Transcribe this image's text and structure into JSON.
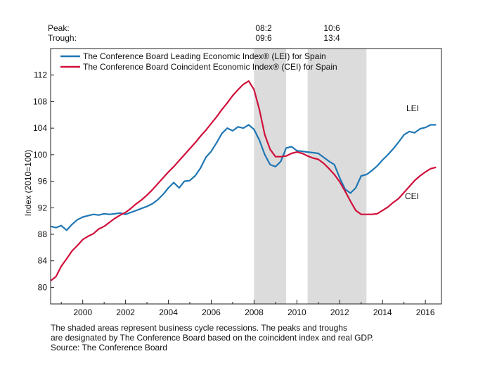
{
  "chart_data": {
    "type": "line",
    "peak_label": "Peak:",
    "trough_label": "Trough:",
    "recessions": [
      {
        "peak": "08:2",
        "trough": "09:6",
        "start": 2008.0,
        "end": 2009.5
      },
      {
        "peak": "10:6",
        "trough": "13:4",
        "start": 2010.5,
        "end": 2013.25
      }
    ],
    "ylabel": "Index (2010=100)",
    "ylim": [
      77.5,
      116.0
    ],
    "xlim": [
      1998.5,
      2016.75
    ],
    "y_ticks": [
      "80",
      "84",
      "88",
      "92",
      "96",
      "100",
      "104",
      "108",
      "112"
    ],
    "x_ticks": [
      "2000",
      "2002",
      "2004",
      "2006",
      "2008",
      "2010",
      "2012",
      "2014",
      "2016"
    ],
    "grid": false,
    "legend_position": "top-left",
    "series": [
      {
        "name": "The Conference Board Leading Economic Index® (LEI) for Spain",
        "end_label": "LEI",
        "color": "#1f77b4",
        "x": [
          1998.5,
          1998.75,
          1999.0,
          1999.25,
          1999.5,
          1999.75,
          2000.0,
          2000.25,
          2000.5,
          2000.75,
          2001.0,
          2001.25,
          2001.5,
          2001.75,
          2002.0,
          2002.25,
          2002.5,
          2002.75,
          2003.0,
          2003.25,
          2003.5,
          2003.75,
          2004.0,
          2004.25,
          2004.5,
          2004.75,
          2005.0,
          2005.25,
          2005.5,
          2005.75,
          2006.0,
          2006.25,
          2006.5,
          2006.75,
          2007.0,
          2007.25,
          2007.5,
          2007.75,
          2008.0,
          2008.25,
          2008.5,
          2008.75,
          2009.0,
          2009.25,
          2009.5,
          2009.75,
          2010.0,
          2010.25,
          2010.5,
          2010.75,
          2011.0,
          2011.25,
          2011.5,
          2011.75,
          2012.0,
          2012.25,
          2012.5,
          2012.75,
          2013.0,
          2013.25,
          2013.5,
          2013.75,
          2014.0,
          2014.25,
          2014.5,
          2014.75,
          2015.0,
          2015.25,
          2015.5,
          2015.75,
          2016.0,
          2016.25,
          2016.5
        ],
        "values": [
          89.2,
          89.0,
          89.3,
          88.6,
          89.5,
          90.2,
          90.6,
          90.8,
          91.0,
          90.9,
          91.1,
          91.0,
          91.1,
          91.2,
          91.0,
          91.3,
          91.6,
          91.9,
          92.2,
          92.6,
          93.2,
          94.0,
          95.0,
          95.8,
          95.0,
          96.0,
          96.1,
          96.8,
          98.0,
          99.6,
          100.5,
          101.8,
          103.2,
          104.0,
          103.6,
          104.2,
          104.0,
          104.5,
          103.8,
          102.2,
          100.0,
          98.5,
          98.2,
          99.0,
          101.0,
          101.2,
          100.6,
          100.5,
          100.4,
          100.3,
          100.2,
          99.6,
          99.0,
          98.5,
          96.5,
          94.8,
          94.2,
          95.0,
          96.8,
          97.0,
          97.6,
          98.3,
          99.2,
          100.0,
          100.9,
          101.9,
          103.0,
          103.5,
          103.3,
          103.9,
          104.1,
          104.5,
          104.5
        ]
      },
      {
        "name": "The Conference Board Coincident Economic Index® (CEI) for Spain",
        "end_label": "CEI",
        "color": "#d0103a",
        "x": [
          1998.5,
          1998.75,
          1999.0,
          1999.25,
          1999.5,
          1999.75,
          2000.0,
          2000.25,
          2000.5,
          2000.75,
          2001.0,
          2001.25,
          2001.5,
          2001.75,
          2002.0,
          2002.25,
          2002.5,
          2002.75,
          2003.0,
          2003.25,
          2003.5,
          2003.75,
          2004.0,
          2004.25,
          2004.5,
          2004.75,
          2005.0,
          2005.25,
          2005.5,
          2005.75,
          2006.0,
          2006.25,
          2006.5,
          2006.75,
          2007.0,
          2007.25,
          2007.5,
          2007.75,
          2008.0,
          2008.25,
          2008.5,
          2008.75,
          2009.0,
          2009.25,
          2009.5,
          2009.75,
          2010.0,
          2010.25,
          2010.5,
          2010.75,
          2011.0,
          2011.25,
          2011.5,
          2011.75,
          2012.0,
          2012.25,
          2012.5,
          2012.75,
          2013.0,
          2013.25,
          2013.5,
          2013.75,
          2014.0,
          2014.25,
          2014.5,
          2014.75,
          2015.0,
          2015.25,
          2015.5,
          2015.75,
          2016.0,
          2016.25,
          2016.5
        ],
        "values": [
          81.0,
          81.6,
          83.2,
          84.3,
          85.5,
          86.3,
          87.2,
          87.7,
          88.1,
          88.8,
          89.2,
          89.8,
          90.4,
          90.9,
          91.3,
          91.9,
          92.6,
          93.2,
          93.9,
          94.7,
          95.6,
          96.5,
          97.4,
          98.2,
          99.1,
          100.0,
          100.9,
          101.8,
          102.8,
          103.7,
          104.7,
          105.7,
          106.8,
          107.8,
          108.9,
          109.8,
          110.6,
          111.1,
          109.8,
          106.8,
          103.0,
          100.8,
          99.7,
          99.7,
          99.8,
          100.2,
          100.4,
          100.2,
          99.8,
          99.5,
          99.3,
          98.7,
          97.9,
          97.0,
          95.9,
          94.5,
          93.0,
          91.6,
          91.0,
          91.0,
          91.0,
          91.1,
          91.6,
          92.1,
          92.8,
          93.4,
          94.3,
          95.2,
          96.1,
          96.8,
          97.4,
          97.9,
          98.1
        ]
      }
    ],
    "notes": [
      "The shaded areas represent business cycle recessions. The peaks and troughs",
      "are designated by The Conference Board based on the coincident index and real GDP.",
      "Source: The Conference Board"
    ],
    "colors": {
      "shade": "#dcdcdc",
      "axis": "#222222"
    }
  }
}
